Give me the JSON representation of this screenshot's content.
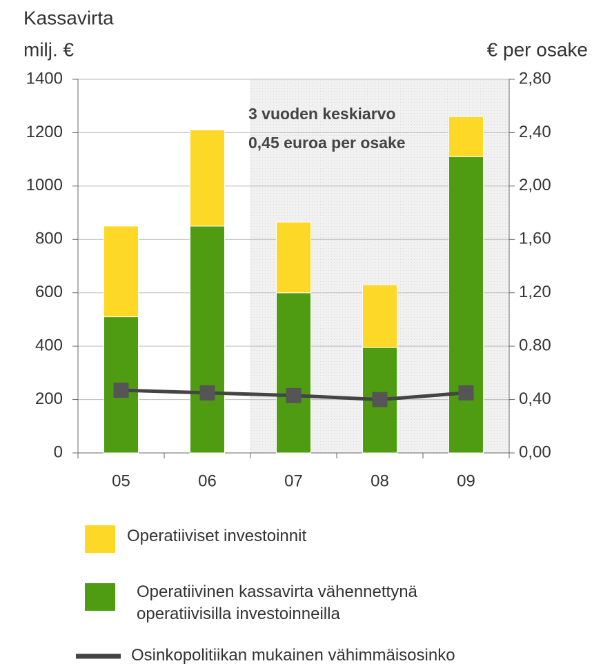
{
  "chart_data": {
    "type": "bar",
    "title": "Kassavirta",
    "ylabel": "milj. €",
    "y2label": "€ per osake",
    "annotations": [
      "3 vuoden keskiarvo",
      "0,45 euroa per osake"
    ],
    "categories": [
      "05",
      "06",
      "07",
      "08",
      "09"
    ],
    "stacked": true,
    "series": [
      {
        "name": "Operatiivinen kassavirta vähennettynä operatiivisilla investoinneilla",
        "color": "#4f9c12",
        "values": [
          510,
          850,
          600,
          395,
          1110
        ]
      },
      {
        "name": "Operatiiviset investoinnit",
        "color": "#fdd826",
        "values": [
          340,
          360,
          265,
          235,
          150
        ]
      },
      {
        "name": "Osinkopolitiikan mukainen vähimmäisosinko",
        "color": "#444444",
        "type": "line",
        "axis": "y2",
        "values": [
          0.47,
          0.45,
          0.43,
          0.4,
          0.45
        ]
      }
    ],
    "ylim": [
      0,
      1400
    ],
    "yticks": [
      0,
      200,
      400,
      600,
      800,
      1000,
      1200,
      1400
    ],
    "y2lim": [
      0,
      2.8
    ],
    "y2ticks": [
      {
        "value": 0,
        "label": "0,00"
      },
      {
        "value": 0.4,
        "label": "0,40"
      },
      {
        "value": 0.8,
        "label": "0.80"
      },
      {
        "value": 1.2,
        "label": "1,20"
      },
      {
        "value": 1.6,
        "label": "1,60"
      },
      {
        "value": 2.0,
        "label": "2,00"
      },
      {
        "value": 2.4,
        "label": "2,40"
      },
      {
        "value": 2.8,
        "label": "2,80"
      }
    ],
    "grid": true
  }
}
